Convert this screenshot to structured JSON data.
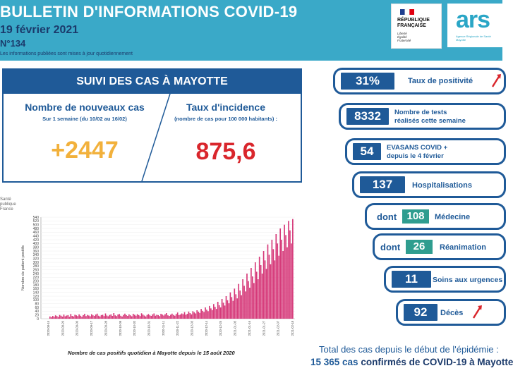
{
  "header": {
    "title": "BULLETIN D'INFORMATIONS COVID-19",
    "date": "19 février 2021",
    "number": "N°134",
    "note": "Les informations publiées sont mises à jour quotidiennement"
  },
  "logos": {
    "republique": {
      "name": "RÉPUBLIQUE\nFRANÇAISE",
      "motto": "Liberté\nÉgalité\nFraternité"
    },
    "ars": {
      "word": "ars",
      "sub": "Agence Régionale de Santé\nMayotte"
    }
  },
  "suivi": {
    "heading": "SUIVI DES CAS À MAYOTTE",
    "new_cases": {
      "title": "Nombre de nouveaux cas",
      "subtitle": "Sur 1 semaine (du 10/02 au 16/02)",
      "value": "+2447"
    },
    "incidence": {
      "title": "Taux d'incidence",
      "subtitle": "(nombre de cas pour 100 000 habitants) :",
      "value": "875,6"
    }
  },
  "indicators": [
    {
      "value": "31%",
      "label": "Taux de positivité"
    },
    {
      "value": "8332",
      "label": "Nombre de tests\nréalisés cette semaine"
    },
    {
      "value": "54",
      "label": "EVASANS COVID +\ndepuis le 4 février"
    },
    {
      "value": "137",
      "label": "Hospitalisations"
    },
    {
      "prefix": "dont",
      "value": "108",
      "label": "Médecine"
    },
    {
      "prefix": "dont",
      "value": "26",
      "label": "Réanimation"
    },
    {
      "value": "11",
      "label": "Soins aux urgences"
    },
    {
      "value": "92",
      "label": "Décès"
    }
  ],
  "totals": {
    "line1": "Total des cas depuis le début de l'épidémie :",
    "count": "15 365 cas",
    "rest": "confirmés de COVID-19 à Mayotte"
  },
  "colors": {
    "header": "#3aa9c8",
    "navy": "#1f5a98",
    "orange": "#f2b13c",
    "red": "#d9262c",
    "teal": "#2f9d8f",
    "bar": "#d63a7a"
  },
  "chart_logo": "Santé\npublique\nFrance",
  "chart_caption": "Nombre de cas positifs quotidien à Mayotte depuis le 15 août 2020",
  "chart_data": {
    "type": "bar",
    "ylabel": "Nombre de patient positifs",
    "ylim": [
      0,
      540
    ],
    "yticks": [
      0,
      20,
      40,
      60,
      80,
      100,
      120,
      140,
      160,
      180,
      200,
      220,
      240,
      260,
      280,
      300,
      320,
      340,
      360,
      380,
      400,
      420,
      440,
      460,
      480,
      500,
      520,
      540
    ],
    "x_start": "2020-08-15",
    "x_end": "2021-02-18",
    "xticks": [
      "2020-08-15",
      "2020-08-26",
      "2020-09-06",
      "2020-09-17",
      "2020-09-28",
      "2020-10-09",
      "2020-10-20",
      "2020-10-31",
      "2020-11-11",
      "2020-11-22",
      "2020-12-03",
      "2020-12-14",
      "2020-12-25",
      "2021-01-05",
      "2021-01-16",
      "2021-01-27",
      "2021-02-07",
      "2021-02-18"
    ],
    "values": [
      12,
      8,
      15,
      10,
      18,
      14,
      9,
      20,
      16,
      11,
      22,
      13,
      17,
      19,
      10,
      25,
      15,
      12,
      21,
      18,
      14,
      23,
      16,
      11,
      19,
      26,
      14,
      20,
      17,
      13,
      24,
      18,
      15,
      22,
      27,
      16,
      12,
      19,
      21,
      14,
      28,
      17,
      13,
      20,
      23,
      15,
      30,
      18,
      14,
      22,
      25,
      16,
      12,
      20,
      27,
      19,
      15,
      23,
      18,
      13,
      26,
      21,
      16,
      24,
      19,
      14,
      29,
      22,
      17,
      12,
      20,
      25,
      18,
      15,
      23,
      28,
      16,
      21,
      19,
      14,
      26,
      22,
      17,
      24,
      30,
      18,
      15,
      21,
      27,
      20,
      16,
      25,
      33,
      19,
      22,
      28,
      24,
      35,
      21,
      26,
      38,
      30,
      23,
      40,
      34,
      28,
      45,
      37,
      31,
      52,
      42,
      36,
      60,
      48,
      40,
      68,
      55,
      46,
      78,
      63,
      52,
      90,
      72,
      60,
      105,
      85,
      70,
      120,
      98,
      82,
      140,
      115,
      95,
      160,
      130,
      108,
      185,
      150,
      125,
      210,
      175,
      145,
      240,
      200,
      165,
      270,
      225,
      190,
      300,
      250,
      210,
      330,
      285,
      240,
      360,
      310,
      265,
      395,
      340,
      290,
      420,
      370,
      310,
      450,
      400,
      335,
      480,
      420,
      360,
      500,
      445,
      380,
      520,
      470,
      400,
      530
    ]
  }
}
